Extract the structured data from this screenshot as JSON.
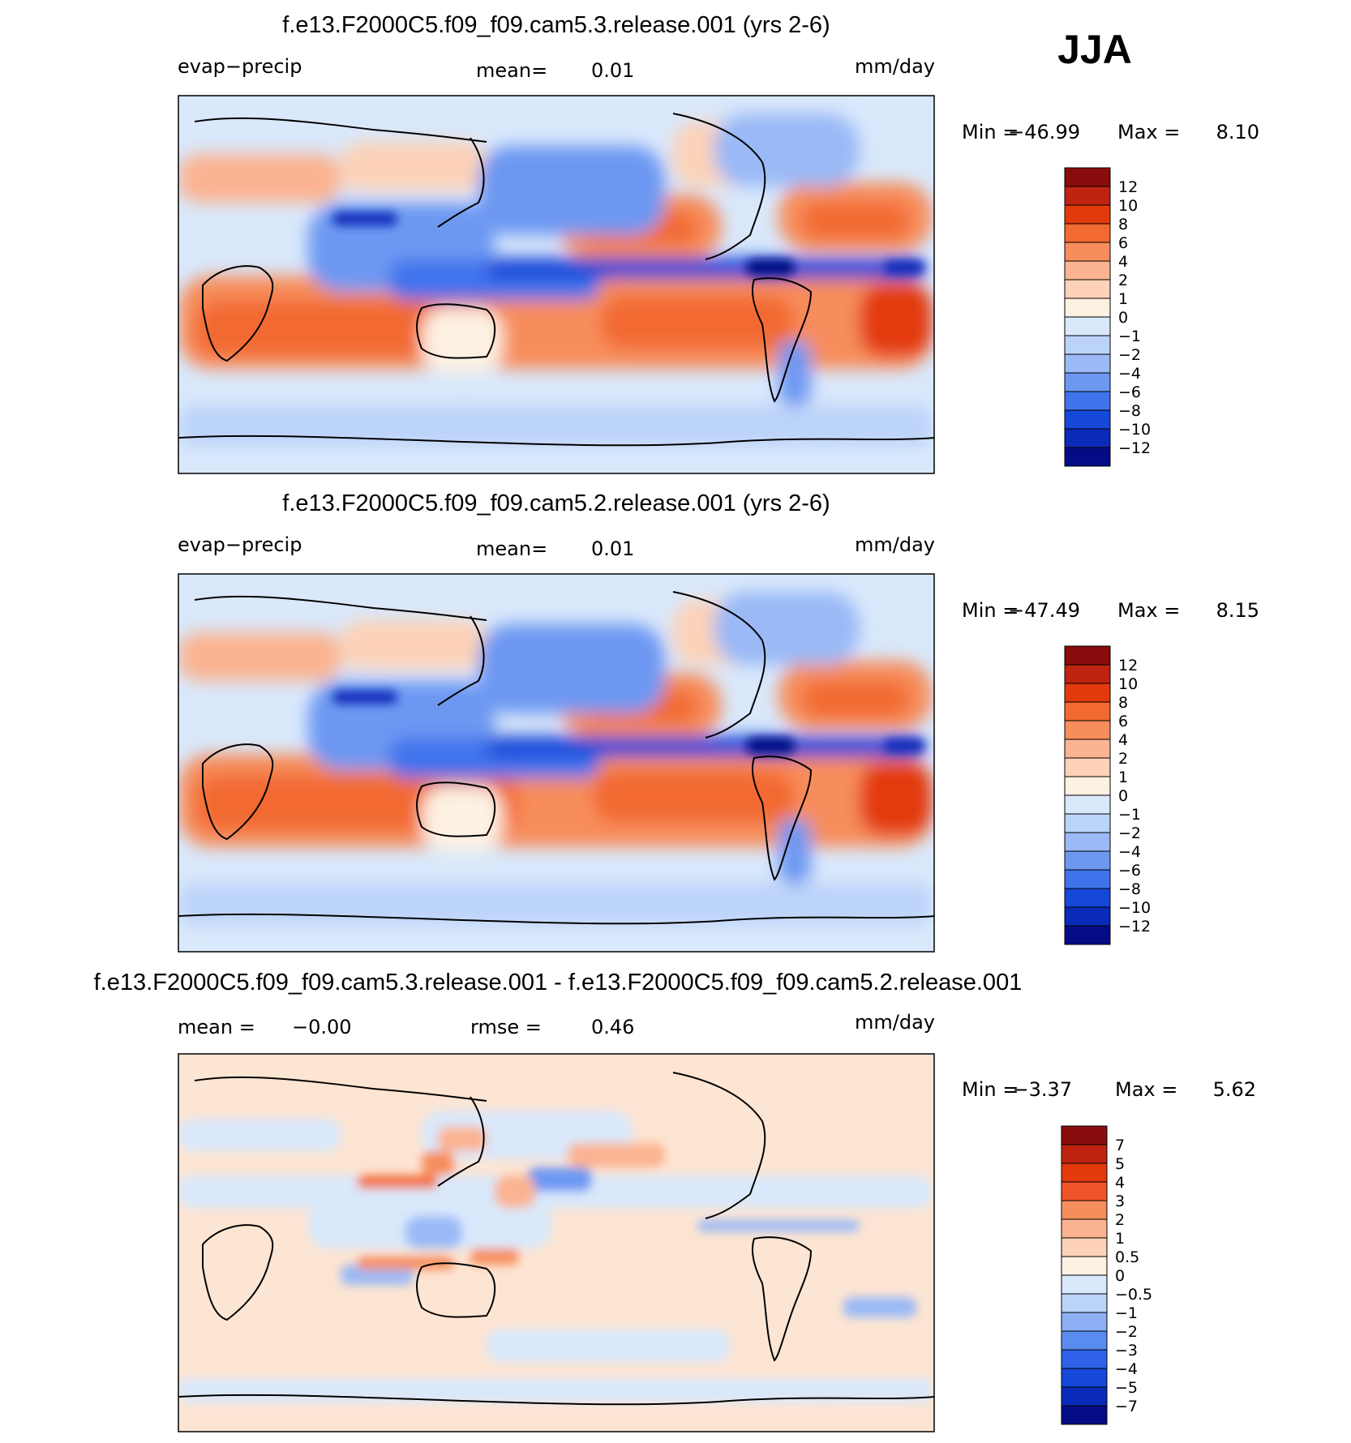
{
  "season": "JJA",
  "chart_data": [
    {
      "type": "heatmap",
      "title": "f.e13.F2000C5.f09_f09.cam5.3.release.001 (yrs 2-6)",
      "variable": "evap−precip",
      "units": "mm/day",
      "stats": {
        "mean_label": "mean=",
        "mean_value": "0.01"
      },
      "min_max": {
        "min_label": "Min  =",
        "min_value": "−46.99",
        "max_label": "Max  =",
        "max_value": "8.10"
      },
      "colorbar": {
        "levels": [
          "12",
          "10",
          "8",
          "6",
          "4",
          "2",
          "1",
          "0",
          "−1",
          "−2",
          "−4",
          "−6",
          "−8",
          "−10",
          "−12"
        ],
        "colors": [
          "#8a0d0d",
          "#bf2410",
          "#e33a0c",
          "#f26a30",
          "#f78d5c",
          "#fbb391",
          "#fdd2b8",
          "#fdf1e2",
          "#d9e8fb",
          "#bcd3f9",
          "#9ab9f6",
          "#6d98f2",
          "#3f73ec",
          "#1547d8",
          "#0a2ab8",
          "#030c85"
        ]
      },
      "annotation": "JJA"
    },
    {
      "type": "heatmap",
      "title": "f.e13.F2000C5.f09_f09.cam5.2.release.001 (yrs 2-6)",
      "variable": "evap−precip",
      "units": "mm/day",
      "stats": {
        "mean_label": "mean=",
        "mean_value": "0.01"
      },
      "min_max": {
        "min_label": "Min  =",
        "min_value": "−47.49",
        "max_label": "Max  =",
        "max_value": "8.15"
      },
      "colorbar": {
        "levels": [
          "12",
          "10",
          "8",
          "6",
          "4",
          "2",
          "1",
          "0",
          "−1",
          "−2",
          "−4",
          "−6",
          "−8",
          "−10",
          "−12"
        ],
        "colors": [
          "#8a0d0d",
          "#bf2410",
          "#e33a0c",
          "#f26a30",
          "#f78d5c",
          "#fbb391",
          "#fdd2b8",
          "#fdf1e2",
          "#d9e8fb",
          "#bcd3f9",
          "#9ab9f6",
          "#6d98f2",
          "#3f73ec",
          "#1547d8",
          "#0a2ab8",
          "#030c85"
        ]
      }
    },
    {
      "type": "heatmap",
      "title": "f.e13.F2000C5.f09_f09.cam5.3.release.001 - f.e13.F2000C5.f09_f09.cam5.2.release.001",
      "units": "mm/day",
      "stats": {
        "mean_label": "mean =",
        "mean_value": "−0.00",
        "rmse_label": "rmse =",
        "rmse_value": "0.46"
      },
      "min_max": {
        "min_label": "Min  =",
        "min_value": "−3.37",
        "max_label": "Max  =",
        "max_value": "5.62"
      },
      "colorbar": {
        "levels": [
          "7",
          "5",
          "4",
          "3",
          "2",
          "1",
          "0.5",
          "0",
          "−0.5",
          "−1",
          "−2",
          "−3",
          "−4",
          "−5",
          "−7"
        ],
        "colors": [
          "#8a0d0d",
          "#bf2410",
          "#e33a0c",
          "#f0552a",
          "#f78d5c",
          "#fbb391",
          "#fdd2b8",
          "#fdf1e2",
          "#d9e8fb",
          "#bcd3f9",
          "#8db0f5",
          "#5a8cf0",
          "#2f62e8",
          "#1547d8",
          "#0a2ab8",
          "#030c85"
        ]
      }
    }
  ]
}
